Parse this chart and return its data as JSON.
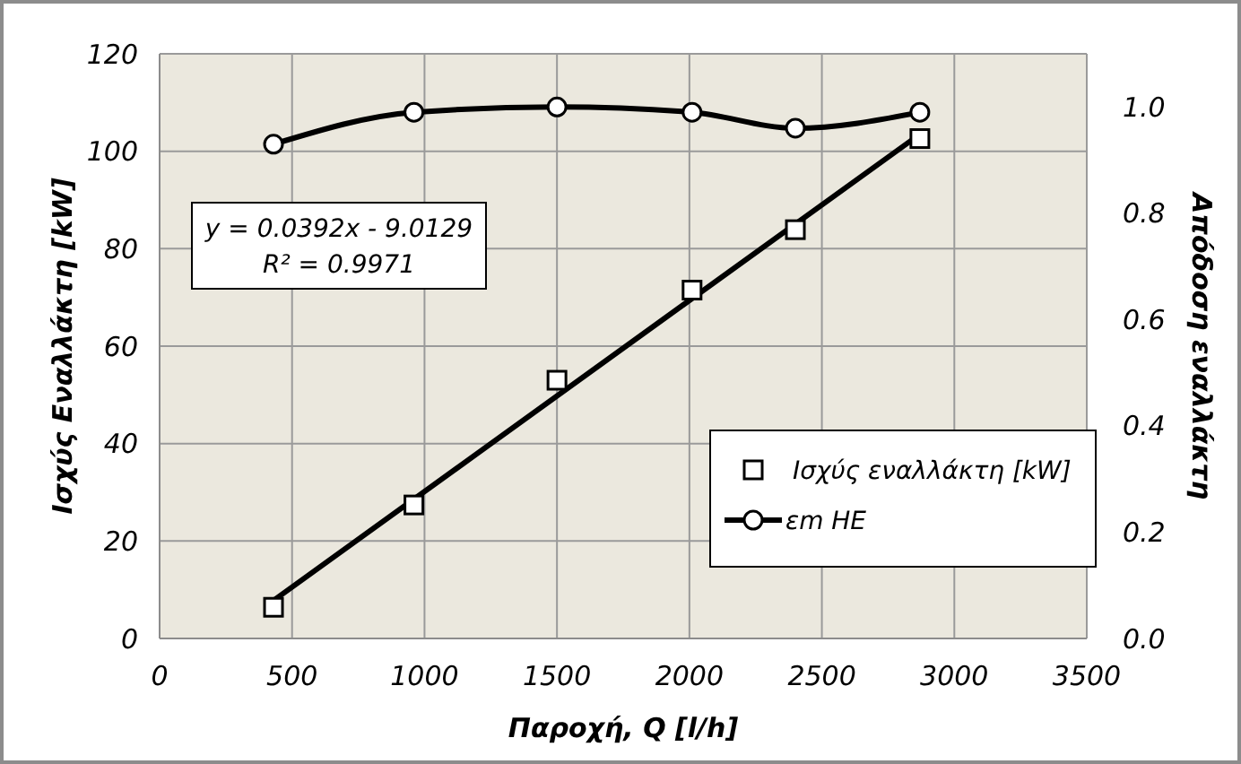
{
  "chart_data": {
    "type": "scatter",
    "xlabel": "Παροχή, Q  [l/h]",
    "ylabel": "Ισχύς Εναλλάκτη  [kW]",
    "y2label": "Απόδοση  εναλλάκτη",
    "xlim": [
      0,
      3500
    ],
    "xticks": [
      0,
      500,
      1000,
      1500,
      2000,
      2500,
      3000,
      3500
    ],
    "ylim": [
      0,
      120
    ],
    "yticks": [
      0,
      20,
      40,
      60,
      80,
      100,
      120
    ],
    "y2lim": [
      0,
      1.1
    ],
    "y2ticks": [
      {
        "value": 0,
        "label": "0.0"
      },
      {
        "value": 0.2,
        "label": "0.2"
      },
      {
        "value": 0.4,
        "label": "0.4"
      },
      {
        "value": 0.6,
        "label": "0.6"
      },
      {
        "value": 0.8,
        "label": "0.8"
      },
      {
        "value": 1,
        "label": "1.0"
      }
    ],
    "grid": true,
    "legend": "bottom right",
    "annotations": [
      "y = 0.0392x - 9.0129",
      "R² = 0.9971"
    ],
    "series": [
      {
        "name": "Ισχύς εναλλάκτη  [kW]",
        "color": "#000000",
        "marker": "square",
        "x": [
          430,
          960,
          1500,
          2010,
          2400,
          2870
        ],
        "values": [
          6.4,
          27.4,
          53,
          71.5,
          83.9,
          102.6
        ]
      },
      {
        "type": "line",
        "name": "εm HE",
        "color": "#000000",
        "marker": "circle",
        "axis": "y2",
        "x": [
          430,
          960,
          1500,
          2010,
          2400,
          2870
        ],
        "values": [
          0.93,
          0.99,
          1.0,
          0.99,
          0.96,
          0.99
        ]
      },
      {
        "type": "line",
        "color": "#000000",
        "marker": "none",
        "x": [
          430,
          2870
        ],
        "values": [
          7.8,
          103.5
        ]
      }
    ]
  }
}
